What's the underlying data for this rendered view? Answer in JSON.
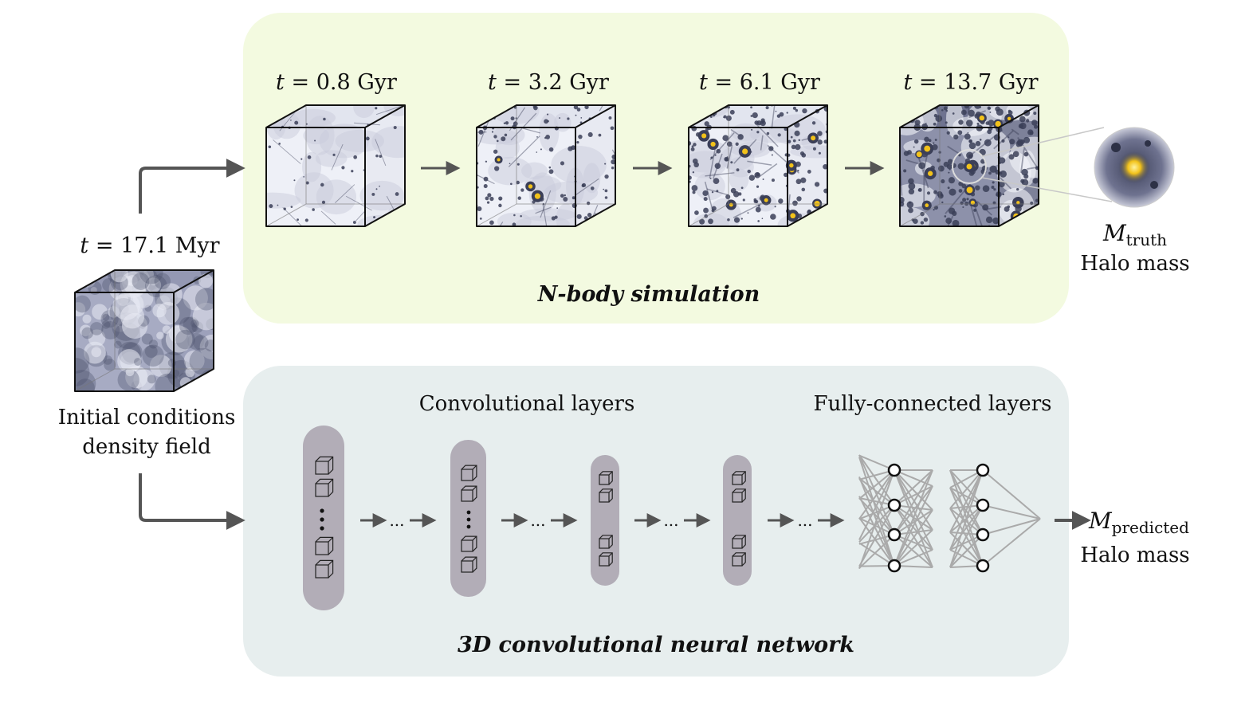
{
  "initial": {
    "time_label": {
      "var": "t",
      "eq": "=",
      "value": "17.1",
      "unit": "Myr"
    },
    "caption_line1": "Initial conditions",
    "caption_line2": "density field"
  },
  "nbody": {
    "title": "N-body simulation",
    "background": "#f3fae0",
    "snapshots": [
      {
        "var": "t",
        "eq": "=",
        "value": "0.8",
        "unit": "Gyr"
      },
      {
        "var": "t",
        "eq": "=",
        "value": "3.2",
        "unit": "Gyr"
      },
      {
        "var": "t",
        "eq": "=",
        "value": "6.1",
        "unit": "Gyr"
      },
      {
        "var": "t",
        "eq": "=",
        "value": "13.7",
        "unit": "Gyr"
      }
    ],
    "output": {
      "symbol": "M",
      "subscript": "truth",
      "label": "Halo mass"
    }
  },
  "cnn": {
    "title": "3D convolutional neural network",
    "background": "#e7eeee",
    "conv_label": "Convolutional layers",
    "fc_label": "Fully-connected layers",
    "ellipsis": "...",
    "output": {
      "symbol": "M",
      "subscript": "predicted",
      "label": "Halo mass"
    }
  },
  "colors": {
    "arrow": "#555555",
    "cube_edge": "#111111",
    "dark_matter": "#3b3f58",
    "halo": "#f2c21a",
    "layer_pill": "#b2adb7",
    "nn_edge": "#aaaaaa"
  }
}
